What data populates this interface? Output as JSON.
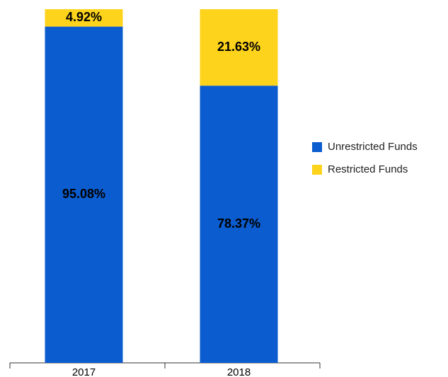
{
  "chart_data": {
    "type": "stacked_bar",
    "categories": [
      "2017",
      "2018"
    ],
    "series": [
      {
        "name": "Unrestricted Funds",
        "color": "#0b5cce",
        "values": [
          95.08,
          78.37
        ],
        "value_labels": [
          "95.08%",
          "78.37%"
        ]
      },
      {
        "name": "Restricted Funds",
        "color": "#fdd31c",
        "values": [
          4.92,
          21.63
        ],
        "value_labels": [
          "4.92%",
          "21.63%"
        ]
      }
    ],
    "legend": "right"
  }
}
